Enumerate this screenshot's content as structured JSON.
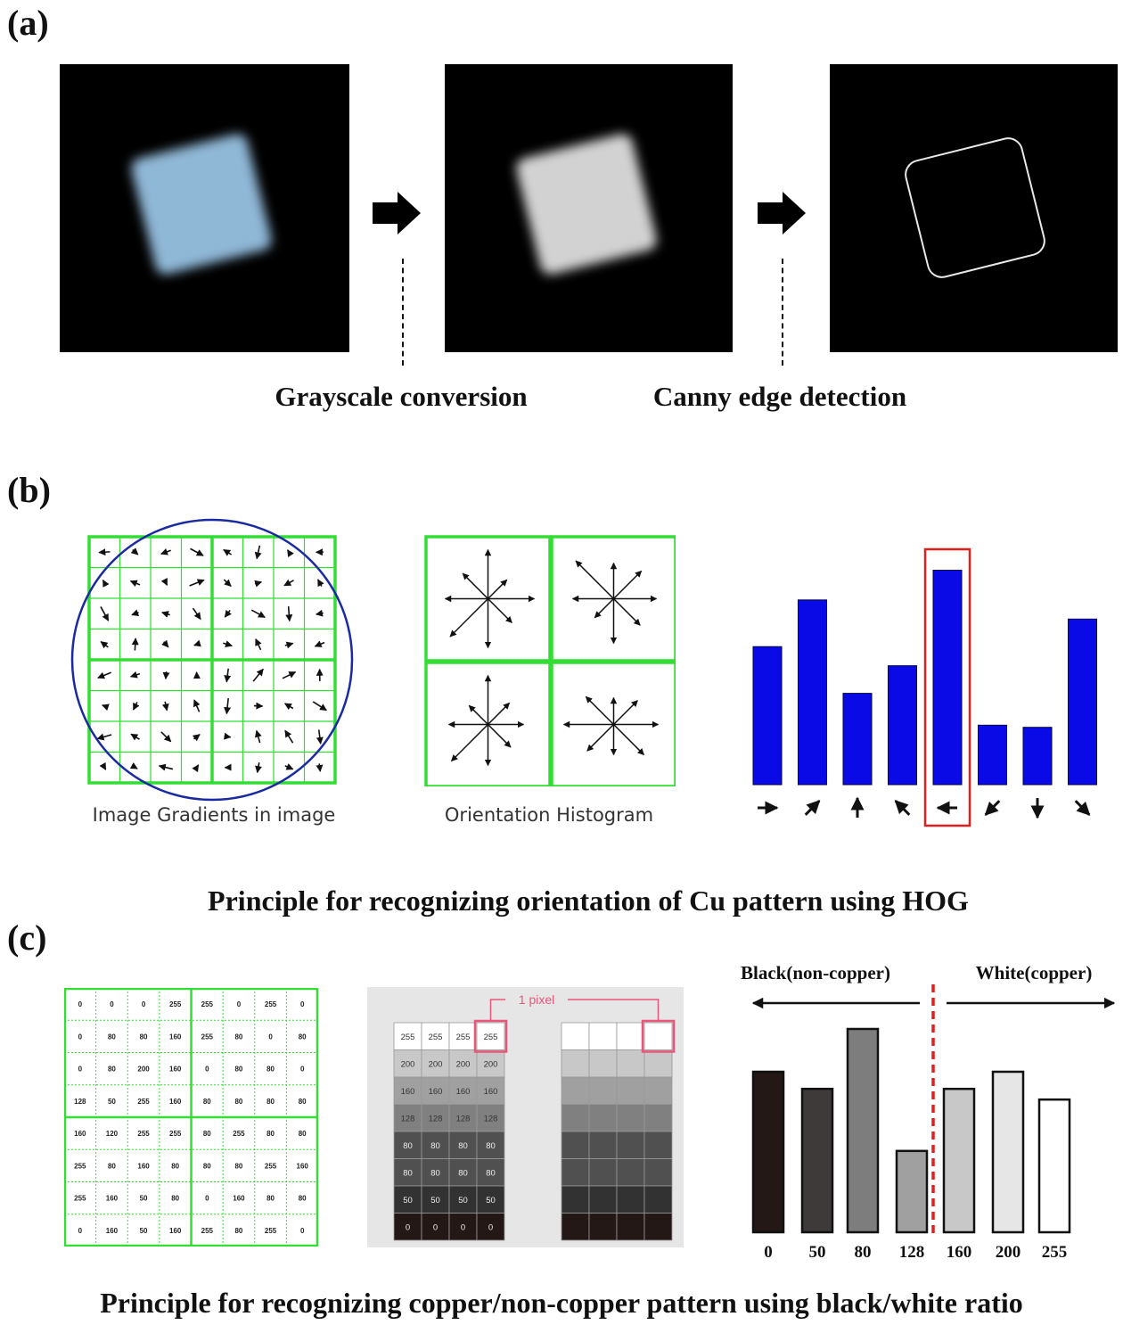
{
  "panels": {
    "a": {
      "label": "(a)",
      "steps": [
        "Grayscale conversion",
        "Canny edge detection"
      ]
    },
    "b": {
      "label": "(b)",
      "gradients_caption": "Image Gradients in image",
      "histogram_caption": "Orientation Histogram",
      "title": "Principle for recognizing orientation of Cu pattern using HOG",
      "colors": {
        "grid": "#33dd33",
        "circle": "#1a2aa0",
        "bar": "#0a0ae6",
        "highlight": "#e02020"
      }
    },
    "c": {
      "label": "(c)",
      "pixel_grid": [
        [
          "0",
          "0",
          "0",
          "255",
          "255",
          "0",
          "255",
          "0"
        ],
        [
          "0",
          "80",
          "80",
          "160",
          "255",
          "80",
          "0",
          "80"
        ],
        [
          "0",
          "80",
          "200",
          "160",
          "0",
          "80",
          "80",
          "0"
        ],
        [
          "128",
          "50",
          "255",
          "160",
          "80",
          "80",
          "80",
          "80"
        ],
        [
          "160",
          "120",
          "255",
          "255",
          "80",
          "255",
          "80",
          "80"
        ],
        [
          "255",
          "80",
          "160",
          "80",
          "80",
          "80",
          "255",
          "160"
        ],
        [
          "255",
          "160",
          "50",
          "80",
          "0",
          "160",
          "80",
          "80"
        ],
        [
          "0",
          "160",
          "50",
          "160",
          "255",
          "80",
          "255",
          "0"
        ]
      ],
      "pixel_label": "1 pixel",
      "gray_levels": [
        "255",
        "200",
        "160",
        "128",
        "80",
        "80",
        "50",
        "0"
      ],
      "black_label": "Black(non-copper)",
      "white_label": "White(copper)",
      "title": "Principle for recognizing copper/non-copper pattern using black/white ratio"
    }
  },
  "chart_data": [
    {
      "type": "bar",
      "categories": [
        "→",
        "↗",
        "↑",
        "↖",
        "←",
        "↙",
        "↓",
        "↘"
      ],
      "values": [
        65,
        87,
        43,
        56,
        101,
        28,
        27,
        78
      ],
      "highlight_index": 4,
      "xlabel": "",
      "ylabel": "",
      "title": ""
    },
    {
      "type": "bar",
      "categories": [
        "0",
        "50",
        "80",
        "128",
        "160",
        "200",
        "255"
      ],
      "values": [
        75,
        67,
        95,
        38,
        67,
        75,
        62
      ],
      "bar_colors": [
        "#231815",
        "#3e3a39",
        "#7d7d7d",
        "#a0a0a0",
        "#c8c8c8",
        "#e6e6e6",
        "#ffffff"
      ],
      "xlabel": "",
      "ylabel": "",
      "title": ""
    }
  ]
}
